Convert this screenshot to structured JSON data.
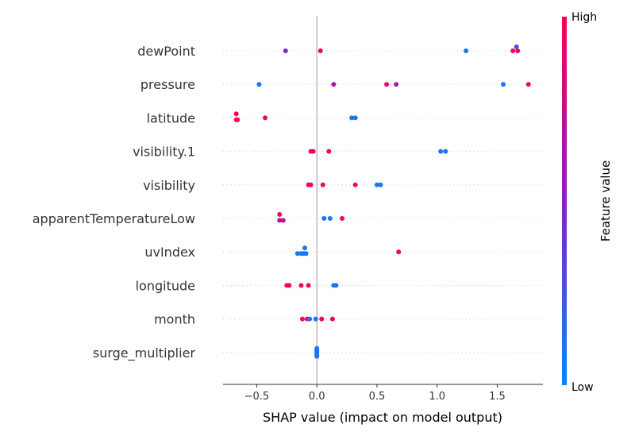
{
  "chart_data": {
    "type": "scatter",
    "title": "",
    "xlabel": "SHAP value (impact on model output)",
    "ylabel": "",
    "xlim": [
      -0.78,
      1.88
    ],
    "xticks": [
      -0.5,
      0.0,
      0.5,
      1.0,
      1.5
    ],
    "xtick_labels": [
      "−0.5",
      "0.0",
      "0.5",
      "1.0",
      "1.5"
    ],
    "features": [
      "dewPoint",
      "pressure",
      "latitude",
      "visibility.1",
      "visibility",
      "apparentTemperatureLow",
      "uvIndex",
      "longitude",
      "month",
      "surge_multiplier"
    ],
    "colors": {
      "low": "#008bfb",
      "mid": "#8a1ec8",
      "high": "#ff0052",
      "zero_line": "#999999",
      "row_line": "#cccccc",
      "axis": "#333333"
    },
    "colorbar": {
      "high_label": "High",
      "low_label": "Low",
      "title": "Feature value"
    },
    "points": [
      [
        {
          "x": -0.26,
          "v": 0.45,
          "d": 0
        },
        {
          "x": 0.03,
          "v": 0.9,
          "d": 0
        },
        {
          "x": 1.24,
          "v": 0.1,
          "d": 0
        },
        {
          "x": 1.63,
          "v": 0.95,
          "d": 0
        },
        {
          "x": 1.66,
          "v": 0.25,
          "d": 1
        },
        {
          "x": 1.67,
          "v": 0.95,
          "d": 0
        }
      ],
      [
        {
          "x": -0.48,
          "v": 0.1,
          "d": 0
        },
        {
          "x": 0.14,
          "v": 0.6,
          "d": 0
        },
        {
          "x": 0.58,
          "v": 0.9,
          "d": 0
        },
        {
          "x": 0.66,
          "v": 0.6,
          "d": 0
        },
        {
          "x": 1.55,
          "v": 0.1,
          "d": 0
        },
        {
          "x": 1.76,
          "v": 0.95,
          "d": 0
        }
      ],
      [
        {
          "x": -0.67,
          "v": 0.95,
          "d": 1
        },
        {
          "x": -0.67,
          "v": 0.95,
          "d": -0.5
        },
        {
          "x": -0.66,
          "v": 0.95,
          "d": -0.5
        },
        {
          "x": -0.43,
          "v": 0.95,
          "d": 0
        },
        {
          "x": 0.29,
          "v": 0.1,
          "d": 0
        },
        {
          "x": 0.32,
          "v": 0.1,
          "d": 0
        }
      ],
      [
        {
          "x": -0.05,
          "v": 0.95,
          "d": 0
        },
        {
          "x": -0.03,
          "v": 0.95,
          "d": 0
        },
        {
          "x": 0.1,
          "v": 0.95,
          "d": 0
        },
        {
          "x": 1.03,
          "v": 0.1,
          "d": 0
        },
        {
          "x": 1.07,
          "v": 0.1,
          "d": 0
        }
      ],
      [
        {
          "x": -0.07,
          "v": 0.95,
          "d": 0
        },
        {
          "x": -0.05,
          "v": 0.95,
          "d": 0
        },
        {
          "x": 0.05,
          "v": 0.95,
          "d": 0
        },
        {
          "x": 0.32,
          "v": 0.95,
          "d": 0
        },
        {
          "x": 0.5,
          "v": 0.1,
          "d": 0
        },
        {
          "x": 0.53,
          "v": 0.1,
          "d": 0
        }
      ],
      [
        {
          "x": -0.31,
          "v": 0.95,
          "d": 1
        },
        {
          "x": -0.31,
          "v": 0.7,
          "d": -0.5
        },
        {
          "x": -0.28,
          "v": 0.7,
          "d": -0.5
        },
        {
          "x": 0.06,
          "v": 0.1,
          "d": 0
        },
        {
          "x": 0.11,
          "v": 0.1,
          "d": 0
        },
        {
          "x": 0.21,
          "v": 0.95,
          "d": 0
        }
      ],
      [
        {
          "x": -0.1,
          "v": 0.1,
          "d": 1
        },
        {
          "x": -0.16,
          "v": 0.1,
          "d": -0.4
        },
        {
          "x": -0.13,
          "v": 0.1,
          "d": -0.4
        },
        {
          "x": -0.11,
          "v": 0.1,
          "d": -0.4
        },
        {
          "x": -0.09,
          "v": 0.1,
          "d": -0.4
        },
        {
          "x": 0.68,
          "v": 0.95,
          "d": 0
        }
      ],
      [
        {
          "x": -0.25,
          "v": 0.95,
          "d": 0
        },
        {
          "x": -0.23,
          "v": 0.95,
          "d": 0
        },
        {
          "x": -0.13,
          "v": 0.95,
          "d": 0
        },
        {
          "x": -0.07,
          "v": 0.95,
          "d": 0
        },
        {
          "x": 0.14,
          "v": 0.1,
          "d": 0
        },
        {
          "x": 0.16,
          "v": 0.1,
          "d": 0
        }
      ],
      [
        {
          "x": -0.12,
          "v": 0.95,
          "d": 0
        },
        {
          "x": -0.08,
          "v": 0.95,
          "d": 0
        },
        {
          "x": -0.06,
          "v": 0.1,
          "d": 0
        },
        {
          "x": -0.01,
          "v": 0.1,
          "d": 0
        },
        {
          "x": 0.04,
          "v": 0.95,
          "d": 0
        },
        {
          "x": 0.13,
          "v": 0.95,
          "d": 0
        }
      ],
      [
        {
          "x": 0.0,
          "v": 0.1,
          "d": 1
        },
        {
          "x": 0.0,
          "v": 0.1,
          "d": 0.7
        },
        {
          "x": 0.0,
          "v": 0.1,
          "d": 0.35
        },
        {
          "x": 0.0,
          "v": 0.1,
          "d": 0
        },
        {
          "x": 0.0,
          "v": 0.1,
          "d": -0.35
        },
        {
          "x": 0.0,
          "v": 0.1,
          "d": -0.7
        },
        {
          "x": 0.0,
          "v": 0.1,
          "d": -1
        }
      ]
    ]
  }
}
